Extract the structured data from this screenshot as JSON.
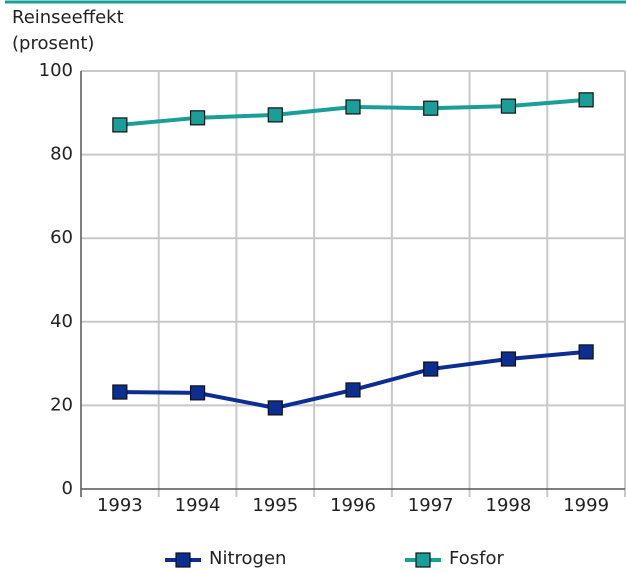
{
  "chart_data": {
    "type": "line",
    "ylabel": [
      "Reinseeffekt",
      "(prosent)"
    ],
    "categories": [
      "1993",
      "1994",
      "1995",
      "1996",
      "1997",
      "1998",
      "1999"
    ],
    "series": [
      {
        "name": "Nitrogen",
        "color": "#0d2e91",
        "values": [
          23.2,
          23.0,
          19.4,
          23.7,
          28.7,
          31.1,
          32.8
        ]
      },
      {
        "name": "Fosfor",
        "color": "#1a9e98",
        "values": [
          87.1,
          88.8,
          89.5,
          91.4,
          91.1,
          91.6,
          93.1
        ]
      }
    ],
    "ylim": [
      0,
      100
    ],
    "yticks": [
      0,
      20,
      40,
      60,
      80,
      100
    ],
    "grid": true
  }
}
